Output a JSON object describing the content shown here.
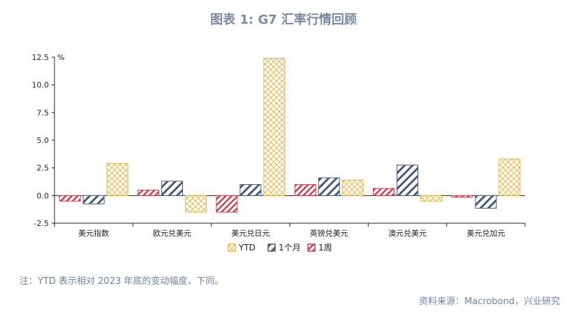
{
  "title": "图表 1: G7 汇率行情回顾",
  "note": "注：YTD 表示相对 2023 年底的变动幅度，下同。",
  "source": "资料来源：Macrobond，兴业研究",
  "colors": {
    "YTD": "#e8b54a",
    "1个月": "#4a5a78",
    "1周": "#c8424f"
  },
  "chart_data": {
    "type": "bar",
    "title": "图表 1: G7 汇率行情回顾",
    "unit": "%",
    "categories": [
      "美元指数",
      "欧元兑美元",
      "美元兑日元",
      "英镑兑美元",
      "澳元兑美元",
      "美元兑加元"
    ],
    "series": [
      {
        "name": "1周",
        "values": [
          -0.5,
          0.5,
          -1.5,
          1.0,
          0.65,
          -0.15
        ]
      },
      {
        "name": "1个月",
        "values": [
          -0.75,
          1.3,
          1.0,
          1.6,
          2.75,
          -1.15
        ]
      },
      {
        "name": "YTD",
        "values": [
          2.9,
          -1.5,
          12.4,
          1.4,
          -0.5,
          3.3
        ]
      }
    ],
    "ylim": [
      -2.5,
      12.5
    ],
    "yticks": [
      "-2.5",
      "0.0",
      "2.5",
      "5.0",
      "7.5",
      "10.0",
      "12.5"
    ],
    "legend": [
      "YTD",
      "1个月",
      "1周"
    ],
    "legend_position": "bottom"
  }
}
